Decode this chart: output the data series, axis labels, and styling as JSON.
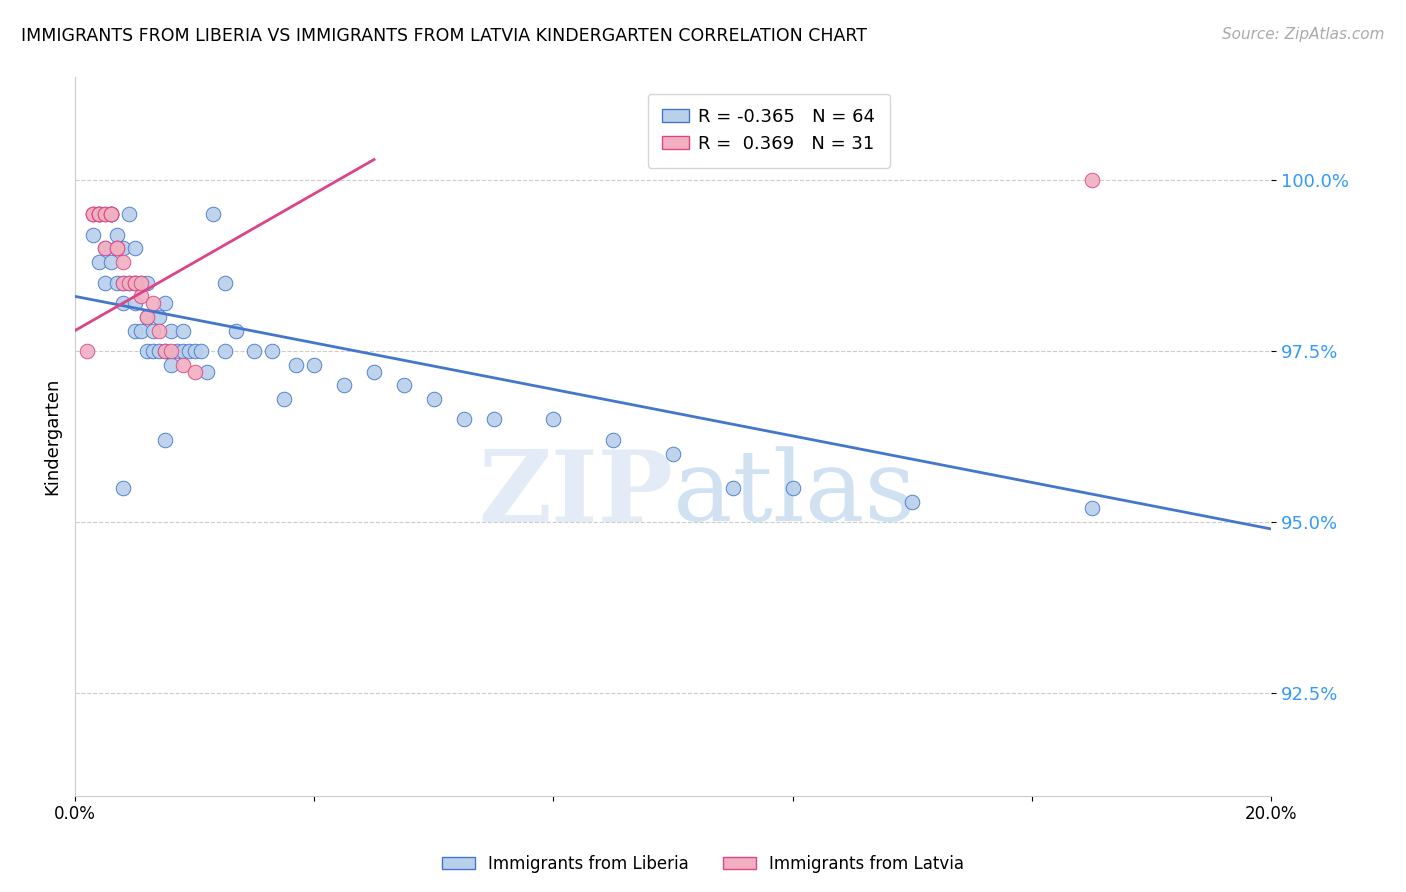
{
  "title": "IMMIGRANTS FROM LIBERIA VS IMMIGRANTS FROM LATVIA KINDERGARTEN CORRELATION CHART",
  "source": "Source: ZipAtlas.com",
  "ylabel": "Kindergarten",
  "yticks": [
    92.5,
    95.0,
    97.5,
    100.0
  ],
  "ytick_labels": [
    "92.5%",
    "95.0%",
    "97.5%",
    "100.0%"
  ],
  "xlim": [
    0.0,
    0.2
  ],
  "ylim": [
    91.0,
    101.5
  ],
  "legend_blue_r": "-0.365",
  "legend_blue_n": "64",
  "legend_pink_r": "0.369",
  "legend_pink_n": "31",
  "blue_color": "#b8d0ea",
  "pink_color": "#f0b0c0",
  "blue_line_color": "#4477cc",
  "pink_line_color": "#dd4488",
  "watermark_zip": "ZIP",
  "watermark_atlas": "atlas",
  "blue_line_x": [
    0.0,
    0.2
  ],
  "blue_line_y": [
    98.3,
    94.9
  ],
  "pink_line_x": [
    0.0,
    0.05
  ],
  "pink_line_y": [
    97.8,
    100.3
  ],
  "blue_points_x": [
    0.003,
    0.004,
    0.004,
    0.005,
    0.005,
    0.006,
    0.006,
    0.006,
    0.007,
    0.007,
    0.007,
    0.008,
    0.008,
    0.008,
    0.009,
    0.009,
    0.01,
    0.01,
    0.01,
    0.01,
    0.011,
    0.011,
    0.012,
    0.012,
    0.012,
    0.013,
    0.013,
    0.014,
    0.014,
    0.015,
    0.015,
    0.016,
    0.016,
    0.017,
    0.018,
    0.018,
    0.019,
    0.02,
    0.021,
    0.022,
    0.023,
    0.025,
    0.027,
    0.03,
    0.033,
    0.037,
    0.04,
    0.045,
    0.05,
    0.055,
    0.06,
    0.065,
    0.07,
    0.08,
    0.09,
    0.1,
    0.11,
    0.12,
    0.14,
    0.17,
    0.035,
    0.025,
    0.015,
    0.008
  ],
  "blue_points_y": [
    99.2,
    99.5,
    98.8,
    99.0,
    98.5,
    99.5,
    99.5,
    98.8,
    99.2,
    99.0,
    98.5,
    99.0,
    98.5,
    98.2,
    99.5,
    98.5,
    99.0,
    98.5,
    98.2,
    97.8,
    98.5,
    97.8,
    98.5,
    98.0,
    97.5,
    97.8,
    97.5,
    98.0,
    97.5,
    98.2,
    97.5,
    97.8,
    97.3,
    97.5,
    97.8,
    97.5,
    97.5,
    97.5,
    97.5,
    97.2,
    99.5,
    98.5,
    97.8,
    97.5,
    97.5,
    97.3,
    97.3,
    97.0,
    97.2,
    97.0,
    96.8,
    96.5,
    96.5,
    96.5,
    96.2,
    96.0,
    95.5,
    95.5,
    95.3,
    95.2,
    96.8,
    97.5,
    96.2,
    95.5
  ],
  "pink_points_x": [
    0.002,
    0.003,
    0.003,
    0.003,
    0.004,
    0.004,
    0.004,
    0.004,
    0.005,
    0.005,
    0.005,
    0.006,
    0.006,
    0.006,
    0.007,
    0.007,
    0.008,
    0.008,
    0.009,
    0.01,
    0.01,
    0.011,
    0.011,
    0.012,
    0.013,
    0.014,
    0.015,
    0.016,
    0.018,
    0.02,
    0.17
  ],
  "pink_points_y": [
    97.5,
    99.5,
    99.5,
    99.5,
    99.5,
    99.5,
    99.5,
    99.5,
    99.5,
    99.5,
    99.0,
    99.5,
    99.5,
    99.5,
    99.0,
    99.0,
    98.8,
    98.5,
    98.5,
    98.5,
    98.5,
    98.3,
    98.5,
    98.0,
    98.2,
    97.8,
    97.5,
    97.5,
    97.3,
    97.2,
    100.0
  ]
}
